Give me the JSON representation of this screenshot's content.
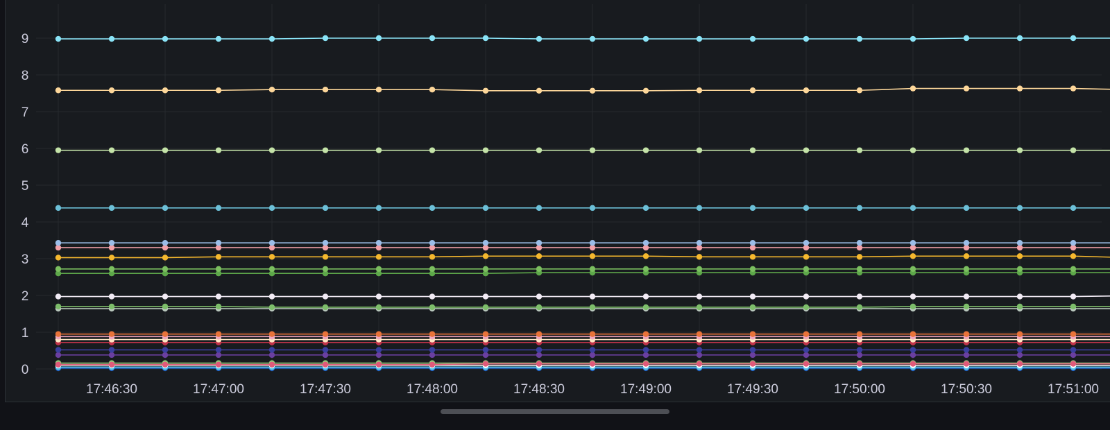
{
  "chart_data": {
    "type": "line",
    "x_type": "time",
    "x": [
      "17:46:15",
      "17:46:30",
      "17:46:45",
      "17:47:00",
      "17:47:15",
      "17:47:30",
      "17:47:45",
      "17:48:00",
      "17:48:15",
      "17:48:30",
      "17:48:45",
      "17:49:00",
      "17:49:15",
      "17:49:30",
      "17:49:45",
      "17:50:00",
      "17:50:15",
      "17:50:30",
      "17:50:45",
      "17:51:00",
      "17:51:15"
    ],
    "x_ticks": [
      "17:46:30",
      "17:47:00",
      "17:47:30",
      "17:48:00",
      "17:48:30",
      "17:49:00",
      "17:49:30",
      "17:50:00",
      "17:50:30",
      "17:51:00"
    ],
    "y_ticks": [
      "0",
      "1",
      "2",
      "3",
      "4",
      "5",
      "6",
      "7",
      "8",
      "9"
    ],
    "ylim": [
      0,
      9.6
    ],
    "grid": true,
    "legend": "none",
    "title": "",
    "xlabel": "",
    "ylabel": "",
    "series": [
      {
        "color": "#8ae4f7",
        "values": [
          8.98,
          8.98,
          8.98,
          8.98,
          8.98,
          9.0,
          9.0,
          9.0,
          9.0,
          8.98,
          8.98,
          8.98,
          8.98,
          8.98,
          8.98,
          8.98,
          8.98,
          9.0,
          9.0,
          9.0,
          9.0
        ]
      },
      {
        "color": "#fdd79a",
        "values": [
          7.58,
          7.58,
          7.58,
          7.58,
          7.6,
          7.6,
          7.6,
          7.6,
          7.57,
          7.57,
          7.57,
          7.57,
          7.58,
          7.58,
          7.58,
          7.58,
          7.63,
          7.63,
          7.63,
          7.63,
          7.6
        ]
      },
      {
        "color": "#c4e3a8",
        "values": [
          5.95,
          5.95,
          5.95,
          5.95,
          5.95,
          5.95,
          5.95,
          5.95,
          5.95,
          5.95,
          5.95,
          5.95,
          5.95,
          5.95,
          5.95,
          5.95,
          5.95,
          5.95,
          5.95,
          5.95,
          5.95
        ]
      },
      {
        "color": "#6cc0d8",
        "values": [
          4.38,
          4.38,
          4.38,
          4.38,
          4.38,
          4.38,
          4.38,
          4.38,
          4.38,
          4.38,
          4.38,
          4.38,
          4.38,
          4.38,
          4.38,
          4.38,
          4.38,
          4.38,
          4.38,
          4.38,
          4.38
        ]
      },
      {
        "color": "#9bbde8",
        "values": [
          3.43,
          3.43,
          3.43,
          3.43,
          3.43,
          3.43,
          3.43,
          3.43,
          3.43,
          3.43,
          3.43,
          3.43,
          3.43,
          3.43,
          3.43,
          3.43,
          3.43,
          3.43,
          3.43,
          3.43,
          3.43
        ]
      },
      {
        "color": "#f2a0a8",
        "values": [
          3.3,
          3.3,
          3.3,
          3.3,
          3.3,
          3.3,
          3.3,
          3.3,
          3.3,
          3.3,
          3.3,
          3.3,
          3.3,
          3.3,
          3.3,
          3.3,
          3.3,
          3.3,
          3.3,
          3.3,
          3.3
        ]
      },
      {
        "color": "#f5b82e",
        "values": [
          3.03,
          3.03,
          3.03,
          3.05,
          3.05,
          3.05,
          3.05,
          3.05,
          3.07,
          3.07,
          3.07,
          3.07,
          3.05,
          3.05,
          3.05,
          3.05,
          3.07,
          3.07,
          3.07,
          3.07,
          3.03
        ]
      },
      {
        "color": "#7bbf5f",
        "values": [
          2.72,
          2.72,
          2.72,
          2.72,
          2.72,
          2.72,
          2.72,
          2.72,
          2.72,
          2.72,
          2.72,
          2.72,
          2.72,
          2.72,
          2.72,
          2.72,
          2.72,
          2.72,
          2.72,
          2.72,
          2.72
        ]
      },
      {
        "color": "#5ea84a",
        "values": [
          2.6,
          2.6,
          2.6,
          2.6,
          2.6,
          2.6,
          2.6,
          2.6,
          2.6,
          2.62,
          2.62,
          2.62,
          2.62,
          2.62,
          2.62,
          2.62,
          2.62,
          2.62,
          2.62,
          2.62,
          2.62
        ]
      },
      {
        "color": "#f2ebf5",
        "values": [
          1.97,
          1.97,
          1.97,
          1.97,
          1.97,
          1.97,
          1.97,
          1.97,
          1.97,
          1.97,
          1.97,
          1.97,
          1.97,
          1.97,
          1.97,
          1.97,
          1.97,
          1.97,
          1.97,
          1.97,
          1.99
        ]
      },
      {
        "color": "#7dbd6a",
        "values": [
          1.7,
          1.7,
          1.7,
          1.7,
          1.68,
          1.68,
          1.68,
          1.68,
          1.68,
          1.68,
          1.68,
          1.68,
          1.68,
          1.68,
          1.68,
          1.68,
          1.7,
          1.7,
          1.7,
          1.7,
          1.7
        ]
      },
      {
        "color": "#b9c7bd",
        "values": [
          1.64,
          1.64,
          1.64,
          1.64,
          1.64,
          1.64,
          1.64,
          1.64,
          1.64,
          1.64,
          1.64,
          1.64,
          1.64,
          1.64,
          1.64,
          1.64,
          1.64,
          1.64,
          1.64,
          1.64,
          1.64
        ]
      },
      {
        "color": "#e8733a",
        "values": [
          0.95,
          0.95,
          0.95,
          0.95,
          0.95,
          0.95,
          0.95,
          0.95,
          0.95,
          0.95,
          0.95,
          0.95,
          0.95,
          0.95,
          0.95,
          0.95,
          0.95,
          0.95,
          0.95,
          0.95,
          0.95
        ]
      },
      {
        "color": "#f0a6bd",
        "values": [
          0.88,
          0.88,
          0.88,
          0.88,
          0.88,
          0.88,
          0.88,
          0.88,
          0.88,
          0.88,
          0.88,
          0.88,
          0.88,
          0.88,
          0.88,
          0.88,
          0.88,
          0.88,
          0.88,
          0.88,
          0.88
        ]
      },
      {
        "color": "#fde7c4",
        "values": [
          0.8,
          0.8,
          0.8,
          0.8,
          0.8,
          0.8,
          0.8,
          0.8,
          0.8,
          0.8,
          0.8,
          0.8,
          0.8,
          0.8,
          0.8,
          0.8,
          0.8,
          0.8,
          0.8,
          0.8,
          0.8
        ]
      },
      {
        "color": "#c2344a",
        "values": [
          0.72,
          0.72,
          0.72,
          0.72,
          0.72,
          0.72,
          0.72,
          0.72,
          0.72,
          0.72,
          0.72,
          0.72,
          0.72,
          0.72,
          0.72,
          0.72,
          0.72,
          0.72,
          0.72,
          0.72,
          0.72
        ]
      },
      {
        "color": "#3a3f9e",
        "values": [
          0.52,
          0.52,
          0.52,
          0.52,
          0.52,
          0.52,
          0.52,
          0.52,
          0.52,
          0.52,
          0.52,
          0.52,
          0.52,
          0.52,
          0.52,
          0.52,
          0.52,
          0.52,
          0.52,
          0.52,
          0.52
        ]
      },
      {
        "color": "#6a3fa0",
        "values": [
          0.38,
          0.38,
          0.38,
          0.38,
          0.38,
          0.38,
          0.38,
          0.38,
          0.38,
          0.38,
          0.38,
          0.38,
          0.38,
          0.38,
          0.38,
          0.38,
          0.38,
          0.38,
          0.38,
          0.38,
          0.38
        ]
      },
      {
        "color": "#e05a7a",
        "values": [
          0.12,
          0.12,
          0.12,
          0.12,
          0.12,
          0.12,
          0.12,
          0.12,
          0.14,
          0.14,
          0.14,
          0.14,
          0.14,
          0.14,
          0.14,
          0.14,
          0.14,
          0.14,
          0.14,
          0.14,
          0.14
        ]
      },
      {
        "color": "#ffffff",
        "values": [
          0.1,
          0.1,
          0.1,
          0.1,
          0.1,
          0.1,
          0.1,
          0.1,
          0.1,
          0.1,
          0.1,
          0.1,
          0.1,
          0.1,
          0.1,
          0.1,
          0.1,
          0.1,
          0.1,
          0.1,
          0.1
        ]
      },
      {
        "color": "#8fd07a",
        "values": [
          0.16,
          0.16,
          0.16,
          0.16,
          0.16,
          0.16,
          0.16,
          0.16,
          0.16,
          0.16,
          0.16,
          0.16,
          0.16,
          0.16,
          0.16,
          0.16,
          0.16,
          0.16,
          0.16,
          0.16,
          0.16
        ]
      },
      {
        "color": "#5ec8e8",
        "values": [
          0.05,
          0.05,
          0.05,
          0.05,
          0.05,
          0.05,
          0.05,
          0.05,
          0.05,
          0.05,
          0.05,
          0.05,
          0.05,
          0.05,
          0.05,
          0.05,
          0.05,
          0.05,
          0.05,
          0.05,
          0.05
        ]
      },
      {
        "color": "#1f60c4",
        "values": [
          0.02,
          0.02,
          0.02,
          0.02,
          0.02,
          0.02,
          0.02,
          0.02,
          0.02,
          0.02,
          0.02,
          0.02,
          0.02,
          0.02,
          0.02,
          0.02,
          0.02,
          0.02,
          0.02,
          0.02,
          0.02
        ]
      }
    ]
  }
}
